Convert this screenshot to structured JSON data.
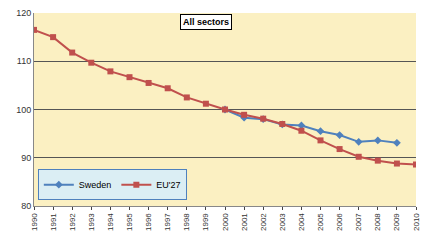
{
  "chart_data": {
    "type": "line",
    "title": "All sectors",
    "x": [
      1990,
      1991,
      1992,
      1993,
      1994,
      1995,
      1996,
      1997,
      1998,
      1999,
      2000,
      2001,
      2002,
      2003,
      2004,
      2005,
      2006,
      2007,
      2008,
      2009,
      2010
    ],
    "series": [
      {
        "name": "Sweden",
        "color": "#4f81bd",
        "marker": "diamond",
        "values": [
          null,
          null,
          null,
          null,
          null,
          null,
          null,
          null,
          null,
          null,
          100,
          98.3,
          98,
          96.9,
          96.7,
          95.5,
          94.7,
          93.3,
          93.6,
          93.1,
          null
        ]
      },
      {
        "name": "EU'27",
        "color": "#c0504d",
        "marker": "square",
        "values": [
          116.5,
          115,
          111.8,
          109.7,
          107.9,
          106.7,
          105.5,
          104.4,
          102.5,
          101.2,
          100,
          98.9,
          98.1,
          97,
          95.6,
          93.6,
          91.8,
          90.2,
          89.4,
          88.8,
          88.6
        ]
      }
    ],
    "xlim": [
      1990,
      2010
    ],
    "xticks": [
      1990,
      1991,
      1992,
      1993,
      1994,
      1995,
      1996,
      1997,
      1998,
      1999,
      2000,
      2001,
      2002,
      2003,
      2004,
      2005,
      2006,
      2007,
      2008,
      2009,
      2010
    ],
    "ylim": [
      80,
      120
    ],
    "yticks": [
      80,
      90,
      100,
      110,
      120
    ],
    "grid": true,
    "legend": "lower left"
  }
}
